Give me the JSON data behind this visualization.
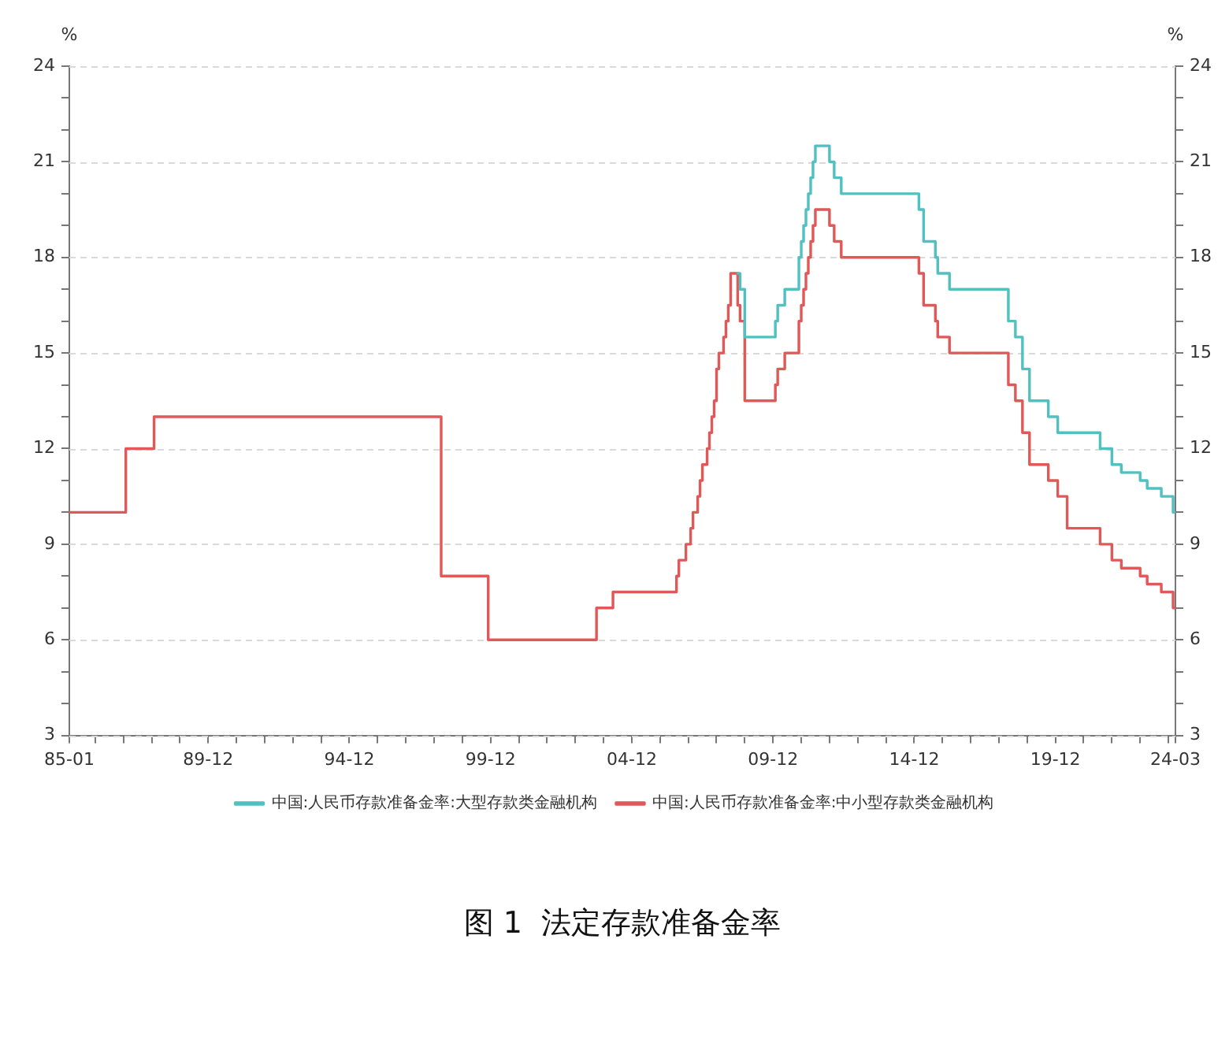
{
  "chart_data": {
    "type": "step",
    "title": "图 1  法定存款准备金率",
    "ylabel": "%",
    "y2label": "%",
    "xlim": [
      "1985-01",
      "2024-03"
    ],
    "xticks": [
      {
        "value": "1985-01",
        "label": "85-01"
      },
      {
        "value": "1985-12",
        "label": null
      },
      {
        "value": "1986-12",
        "label": null
      },
      {
        "value": "1987-12",
        "label": null
      },
      {
        "value": "1988-12",
        "label": null
      },
      {
        "value": "1989-12",
        "label": "89-12"
      },
      {
        "value": "1990-12",
        "label": null
      },
      {
        "value": "1991-12",
        "label": null
      },
      {
        "value": "1992-12",
        "label": null
      },
      {
        "value": "1993-12",
        "label": null
      },
      {
        "value": "1994-12",
        "label": "94-12"
      },
      {
        "value": "1995-12",
        "label": null
      },
      {
        "value": "1996-12",
        "label": null
      },
      {
        "value": "1997-12",
        "label": null
      },
      {
        "value": "1998-12",
        "label": null
      },
      {
        "value": "1999-12",
        "label": "99-12"
      },
      {
        "value": "2000-12",
        "label": null
      },
      {
        "value": "2001-12",
        "label": null
      },
      {
        "value": "2002-12",
        "label": null
      },
      {
        "value": "2003-12",
        "label": null
      },
      {
        "value": "2004-12",
        "label": "04-12"
      },
      {
        "value": "2005-12",
        "label": null
      },
      {
        "value": "2006-12",
        "label": null
      },
      {
        "value": "2007-12",
        "label": null
      },
      {
        "value": "2008-12",
        "label": null
      },
      {
        "value": "2009-12",
        "label": "09-12"
      },
      {
        "value": "2010-12",
        "label": null
      },
      {
        "value": "2011-12",
        "label": null
      },
      {
        "value": "2012-12",
        "label": null
      },
      {
        "value": "2013-12",
        "label": null
      },
      {
        "value": "2014-12",
        "label": "14-12"
      },
      {
        "value": "2015-12",
        "label": null
      },
      {
        "value": "2016-12",
        "label": null
      },
      {
        "value": "2017-12",
        "label": null
      },
      {
        "value": "2018-12",
        "label": null
      },
      {
        "value": "2019-12",
        "label": "19-12"
      },
      {
        "value": "2020-12",
        "label": null
      },
      {
        "value": "2021-12",
        "label": null
      },
      {
        "value": "2022-12",
        "label": null
      },
      {
        "value": "2023-12",
        "label": null
      },
      {
        "value": "2024-03",
        "label": "24-03"
      }
    ],
    "ylim": [
      3,
      24
    ],
    "yticks": [
      3,
      {
        "value": 4,
        "label": null
      },
      {
        "value": 5,
        "label": null
      },
      6,
      {
        "value": 7,
        "label": null
      },
      {
        "value": 8,
        "label": null
      },
      9,
      {
        "value": 10,
        "label": null
      },
      {
        "value": 11,
        "label": null
      },
      12,
      {
        "value": 13,
        "label": null
      },
      {
        "value": 14,
        "label": null
      },
      15,
      {
        "value": 16,
        "label": null
      },
      {
        "value": 17,
        "label": null
      },
      18,
      {
        "value": 19,
        "label": null
      },
      {
        "value": 20,
        "label": null
      },
      21,
      {
        "value": 22,
        "label": null
      },
      {
        "value": 23,
        "label": null
      },
      24
    ],
    "y2lim": [
      3,
      24
    ],
    "y2ticks": [
      3,
      {
        "value": 4,
        "label": null
      },
      {
        "value": 5,
        "label": null
      },
      6,
      {
        "value": 7,
        "label": null
      },
      {
        "value": 8,
        "label": null
      },
      9,
      {
        "value": 10,
        "label": null
      },
      {
        "value": 11,
        "label": null
      },
      12,
      {
        "value": 13,
        "label": null
      },
      {
        "value": 14,
        "label": null
      },
      15,
      {
        "value": 16,
        "label": null
      },
      {
        "value": 17,
        "label": null
      },
      18,
      {
        "value": 19,
        "label": null
      },
      {
        "value": 20,
        "label": null
      },
      21,
      {
        "value": 22,
        "label": null
      },
      {
        "value": 23,
        "label": null
      },
      24
    ],
    "grid": "y",
    "legend": "bottom",
    "series": [
      {
        "name": "中国:人民币存款准备金率:大型存款类金融机构",
        "color": "#50c0c0",
        "x": [
          "2008-09",
          "2008-10",
          "2008-12",
          "2010-01",
          "2010-02",
          "2010-05",
          "2010-11",
          "2010-12",
          "2011-01",
          "2011-02",
          "2011-03",
          "2011-04",
          "2011-05",
          "2011-06",
          "2011-12",
          "2012-02",
          "2012-05",
          "2015-02",
          "2015-04",
          "2015-09",
          "2015-10",
          "2016-03",
          "2018-04",
          "2018-07",
          "2018-10",
          "2019-01",
          "2019-09",
          "2020-01",
          "2021-07",
          "2021-12",
          "2022-04",
          "2022-12",
          "2023-03",
          "2023-09",
          "2024-02",
          "2024-03"
        ],
        "values": [
          17.5,
          17,
          15.5,
          16,
          16.5,
          17,
          18,
          18.5,
          19,
          19.5,
          20,
          20.5,
          21,
          21.5,
          21,
          20.5,
          20,
          19.5,
          18.5,
          18,
          17.5,
          17,
          16,
          15.5,
          14.5,
          13.5,
          13,
          12.5,
          12,
          11.5,
          11.25,
          11,
          10.75,
          10.5,
          10,
          10
        ]
      },
      {
        "name": "中国:人民币存款准备金率:中小型存款类金融机构",
        "color": "#e05858",
        "x": [
          "1985-01",
          "1987-01",
          "1988-01",
          "1998-03",
          "1999-11",
          "2003-09",
          "2004-04",
          "2006-07",
          "2006-08",
          "2006-11",
          "2007-01",
          "2007-02",
          "2007-04",
          "2007-05",
          "2007-06",
          "2007-08",
          "2007-09",
          "2007-10",
          "2007-11",
          "2007-12",
          "2008-01",
          "2008-03",
          "2008-04",
          "2008-05",
          "2008-06",
          "2008-09",
          "2008-10",
          "2008-12",
          "2010-01",
          "2010-02",
          "2010-05",
          "2010-11",
          "2010-12",
          "2011-01",
          "2011-02",
          "2011-03",
          "2011-04",
          "2011-05",
          "2011-06",
          "2011-12",
          "2012-02",
          "2012-05",
          "2015-02",
          "2015-04",
          "2015-09",
          "2015-10",
          "2016-03",
          "2018-04",
          "2018-07",
          "2018-10",
          "2019-01",
          "2019-09",
          "2020-01",
          "2020-05",
          "2021-07",
          "2021-12",
          "2022-04",
          "2022-12",
          "2023-03",
          "2023-09",
          "2024-02",
          "2024-03"
        ],
        "values": [
          10,
          12,
          13,
          8,
          6,
          7,
          7.5,
          8,
          8.5,
          9,
          9.5,
          10,
          10.5,
          11,
          11.5,
          12,
          12.5,
          13,
          13.5,
          14.5,
          15,
          15.5,
          16,
          16.5,
          17.5,
          16.5,
          16,
          13.5,
          14,
          14.5,
          15,
          16,
          16.5,
          17,
          17.5,
          18,
          18.5,
          19,
          19.5,
          19,
          18.5,
          18,
          17.5,
          16.5,
          16,
          15.5,
          15,
          14,
          13.5,
          12.5,
          11.5,
          11,
          10.5,
          9.5,
          9,
          8.5,
          8.25,
          8,
          7.75,
          7.5,
          7,
          7
        ]
      }
    ]
  }
}
